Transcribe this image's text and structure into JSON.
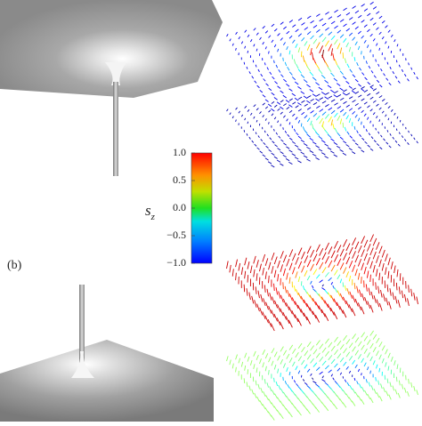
{
  "panel_label": "(b)",
  "colorbar": {
    "label": "s",
    "label_subscript": "z",
    "range": [
      -1,
      1
    ],
    "ticks": [
      {
        "value": 1,
        "label": "1.0"
      },
      {
        "value": 0.5,
        "label": "0.5"
      },
      {
        "value": 0,
        "label": "0.0"
      },
      {
        "value": -0.5,
        "label": "−0.5"
      },
      {
        "value": -1,
        "label": "−1.0"
      }
    ]
  }
}
